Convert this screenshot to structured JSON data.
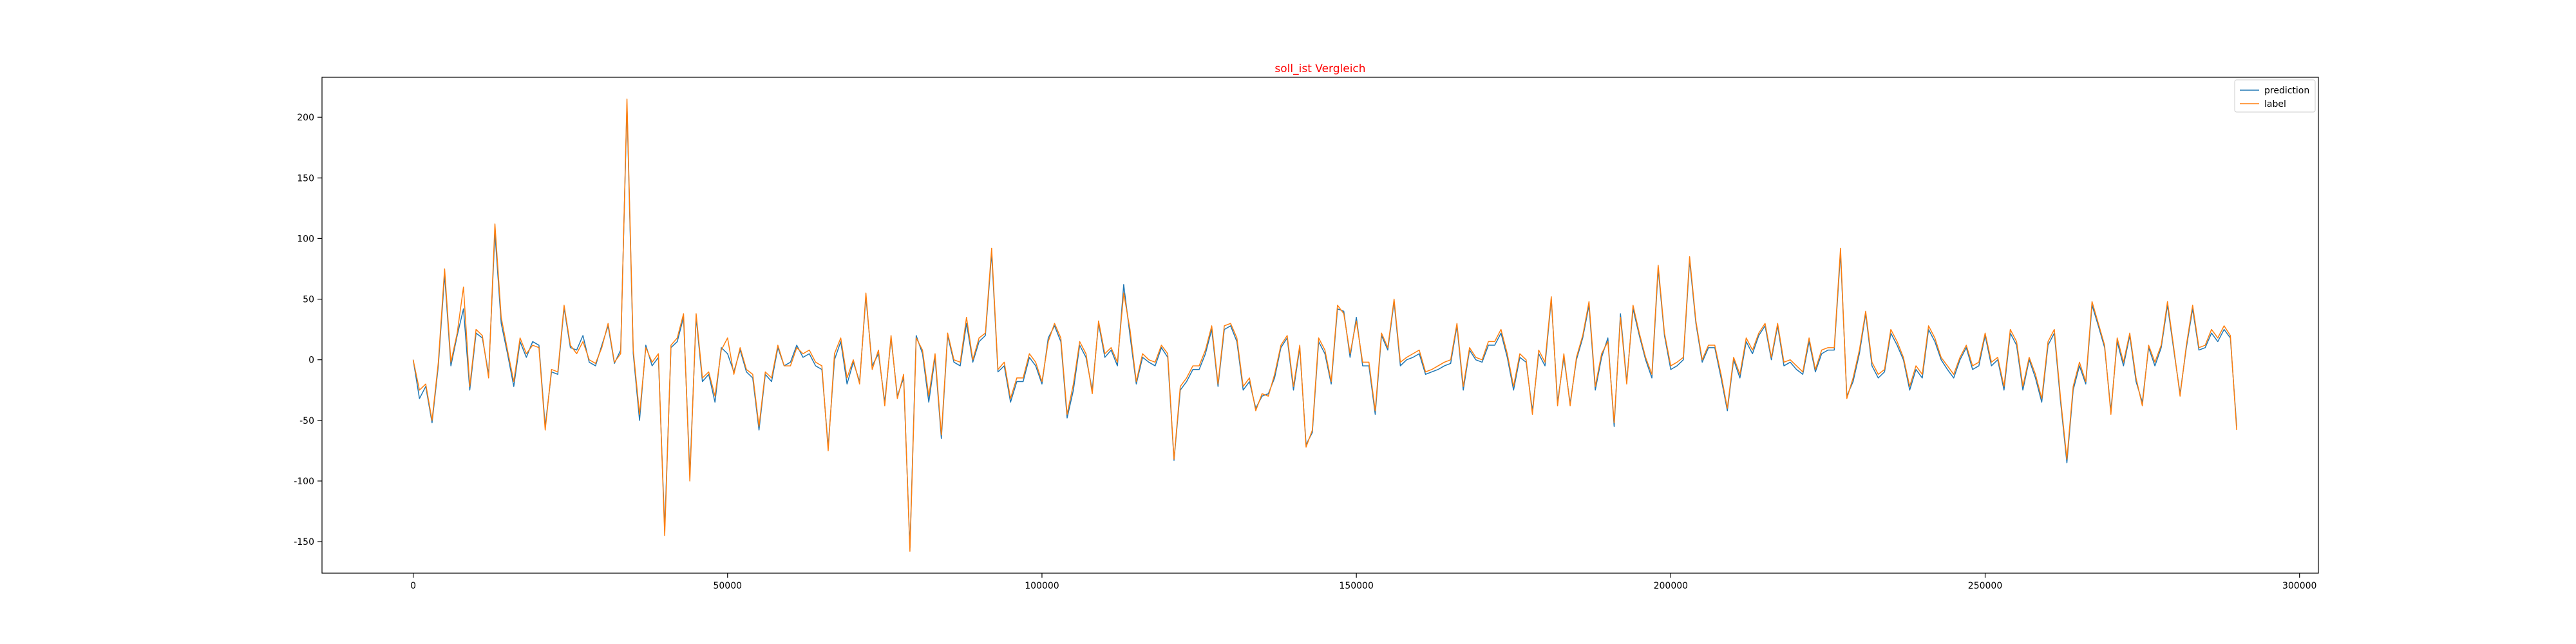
{
  "chart_data": {
    "type": "line",
    "title": "soll_ist Vergleich",
    "title_color": "#ff0000",
    "xlabel": "",
    "ylabel": "",
    "xlim": [
      -14500,
      303000
    ],
    "ylim": [
      -176,
      233
    ],
    "x_ticks": [
      0,
      50000,
      100000,
      150000,
      200000,
      250000,
      300000
    ],
    "y_ticks": [
      -150,
      -100,
      -50,
      0,
      50,
      100,
      150,
      200
    ],
    "grid": false,
    "legend_position": "top-right",
    "x_step": 1000,
    "series": [
      {
        "name": "prediction",
        "color": "#1f77b4",
        "values": [
          0,
          -32,
          -22,
          -52,
          -5,
          70,
          -5,
          20,
          42,
          -25,
          22,
          18,
          -12,
          105,
          30,
          5,
          -22,
          15,
          2,
          15,
          12,
          -55,
          -10,
          -12,
          43,
          10,
          8,
          20,
          -2,
          -5,
          12,
          28,
          -3,
          8,
          210,
          5,
          -50,
          12,
          -5,
          2,
          -140,
          10,
          15,
          35,
          -95,
          35,
          -18,
          -12,
          -35,
          10,
          5,
          -10,
          8,
          -10,
          -15,
          -58,
          -12,
          -18,
          10,
          -5,
          -2,
          12,
          2,
          5,
          -5,
          -8,
          -72,
          0,
          15,
          -20,
          -2,
          -18,
          52,
          -5,
          5,
          -35,
          18,
          -30,
          -15,
          -155,
          20,
          5,
          -35,
          2,
          -65,
          20,
          -2,
          -5,
          30,
          -2,
          15,
          20,
          88,
          -10,
          -5,
          -35,
          -18,
          -18,
          2,
          -5,
          -20,
          18,
          28,
          15,
          -48,
          -25,
          12,
          2,
          -25,
          30,
          2,
          8,
          -5,
          62,
          20,
          -20,
          2,
          -2,
          -5,
          10,
          2,
          -83,
          -25,
          -18,
          -8,
          -8,
          5,
          25,
          -22,
          25,
          28,
          15,
          -25,
          -18,
          -40,
          -30,
          -28,
          -15,
          10,
          18,
          -25,
          10,
          -70,
          -60,
          15,
          5,
          -20,
          42,
          40,
          2,
          35,
          -5,
          -5,
          -45,
          20,
          8,
          48,
          -5,
          0,
          2,
          5,
          -12,
          -10,
          -8,
          -5,
          -3,
          28,
          -25,
          8,
          0,
          -2,
          12,
          12,
          22,
          2,
          -25,
          2,
          -2,
          -42,
          5,
          -5,
          50,
          -35,
          2,
          -36,
          0,
          18,
          45,
          -25,
          2,
          18,
          -55,
          38,
          -18,
          42,
          20,
          0,
          -15,
          75,
          20,
          -8,
          -5,
          0,
          82,
          30,
          -2,
          10,
          10,
          -15,
          -42,
          0,
          -15,
          15,
          5,
          20,
          28,
          0,
          28,
          -5,
          -2,
          -8,
          -12,
          15,
          -10,
          5,
          8,
          8,
          88,
          -30,
          -18,
          5,
          38,
          -5,
          -15,
          -10,
          22,
          12,
          0,
          -25,
          -8,
          -15,
          25,
          15,
          0,
          -8,
          -15,
          0,
          10,
          -8,
          -5,
          20,
          -5,
          0,
          -25,
          22,
          12,
          -25,
          0,
          -15,
          -35,
          12,
          22,
          -35,
          -85,
          -25,
          -5,
          -20,
          45,
          28,
          10,
          -42,
          15,
          -5,
          20,
          -18,
          -35,
          10,
          -5,
          10,
          45,
          8,
          -28,
          10,
          42,
          8,
          10,
          22,
          15,
          25,
          18,
          -55
        ]
      },
      {
        "name": "label",
        "color": "#ff7f0e",
        "values": [
          0,
          -25,
          -20,
          -50,
          -2,
          75,
          -2,
          22,
          60,
          -22,
          25,
          20,
          -15,
          112,
          35,
          8,
          -18,
          18,
          5,
          12,
          10,
          -58,
          -8,
          -10,
          45,
          12,
          5,
          15,
          0,
          -3,
          10,
          30,
          -2,
          5,
          215,
          8,
          -45,
          10,
          -2,
          5,
          -145,
          12,
          18,
          38,
          -100,
          38,
          -15,
          -10,
          -30,
          8,
          18,
          -12,
          10,
          -8,
          -12,
          -55,
          -10,
          -15,
          12,
          -5,
          -5,
          10,
          5,
          8,
          -2,
          -5,
          -75,
          5,
          18,
          -15,
          0,
          -20,
          55,
          -8,
          8,
          -38,
          20,
          -32,
          -12,
          -158,
          18,
          8,
          -30,
          5,
          -62,
          22,
          0,
          -2,
          35,
          0,
          18,
          22,
          92,
          -8,
          -2,
          -32,
          -15,
          -15,
          5,
          -2,
          -18,
          15,
          30,
          18,
          -45,
          -20,
          15,
          5,
          -28,
          32,
          5,
          10,
          -2,
          55,
          25,
          -18,
          5,
          0,
          -2,
          12,
          5,
          -82,
          -22,
          -15,
          -5,
          -5,
          8,
          28,
          -20,
          28,
          30,
          18,
          -22,
          -15,
          -42,
          -28,
          -30,
          -12,
          12,
          20,
          -22,
          12,
          -72,
          -58,
          18,
          8,
          -18,
          45,
          38,
          5,
          32,
          -2,
          -2,
          -42,
          22,
          10,
          50,
          -2,
          2,
          5,
          8,
          -10,
          -8,
          -5,
          -2,
          0,
          30,
          -22,
          10,
          2,
          0,
          15,
          15,
          25,
          5,
          -22,
          5,
          0,
          -45,
          8,
          -2,
          52,
          -38,
          5,
          -38,
          2,
          20,
          48,
          -22,
          5,
          15,
          -52,
          35,
          -20,
          45,
          22,
          2,
          -12,
          78,
          22,
          -5,
          -2,
          2,
          85,
          32,
          0,
          12,
          12,
          -12,
          -40,
          2,
          -12,
          18,
          8,
          22,
          30,
          2,
          30,
          -2,
          0,
          -5,
          -10,
          18,
          -8,
          8,
          10,
          10,
          92,
          -32,
          -15,
          8,
          40,
          -2,
          -12,
          -8,
          25,
          15,
          2,
          -22,
          -5,
          -12,
          28,
          18,
          2,
          -5,
          -12,
          2,
          12,
          -5,
          -2,
          22,
          -2,
          2,
          -22,
          25,
          15,
          -22,
          2,
          -12,
          -32,
          15,
          25,
          -32,
          -82,
          -22,
          -2,
          -18,
          48,
          30,
          12,
          -45,
          18,
          -2,
          22,
          -15,
          -38,
          12,
          -2,
          12,
          48,
          10,
          -30,
          12,
          45,
          10,
          12,
          25,
          18,
          28,
          20,
          -58
        ]
      }
    ]
  }
}
